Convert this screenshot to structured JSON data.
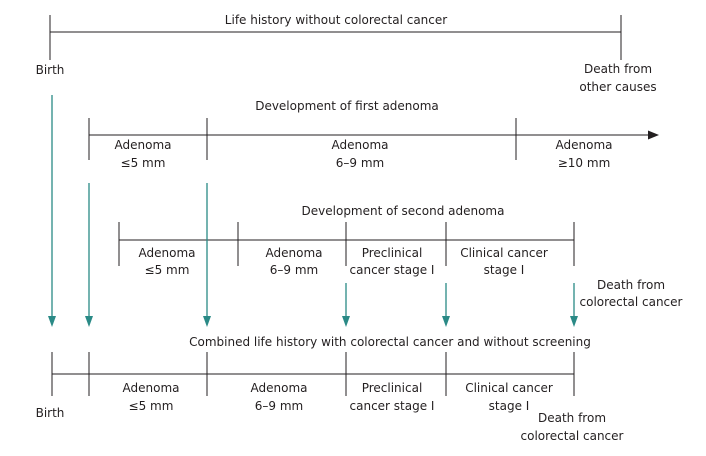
{
  "top": {
    "title": "Life history without colorectal cancer",
    "start_label": "Birth",
    "end_label_line1": "Death from",
    "end_label_line2": "other causes"
  },
  "first_adenoma": {
    "title": "Development of first adenoma",
    "stages": [
      {
        "line1": "Adenoma",
        "line2": "≤5 mm"
      },
      {
        "line1": "Adenoma",
        "line2": "6–9 mm"
      },
      {
        "line1": "Adenoma",
        "line2": "≥10 mm"
      }
    ]
  },
  "second_adenoma": {
    "title": "Development of second adenoma",
    "stages": [
      {
        "line1": "Adenoma",
        "line2": "≤5 mm"
      },
      {
        "line1": "Adenoma",
        "line2": "6–9 mm"
      },
      {
        "line1": "Preclinical",
        "line2": "cancer stage I"
      },
      {
        "line1": "Clinical cancer",
        "line2": "stage I"
      }
    ],
    "end_label_line1": "Death from",
    "end_label_line2": "colorectal cancer"
  },
  "combined": {
    "title": "Combined life history with colorectal cancer and without screening",
    "start_label": "Birth",
    "stages": [
      {
        "line1": "Adenoma",
        "line2": "≤5 mm"
      },
      {
        "line1": "Adenoma",
        "line2": "6–9 mm"
      },
      {
        "line1": "Preclinical",
        "line2": "cancer stage I"
      },
      {
        "line1": "Clinical cancer",
        "line2": "stage I"
      }
    ],
    "end_label_line1": "Death from",
    "end_label_line2": "colorectal cancer"
  },
  "colors": {
    "arrow": "#2a8a86",
    "line": "#231f20"
  }
}
